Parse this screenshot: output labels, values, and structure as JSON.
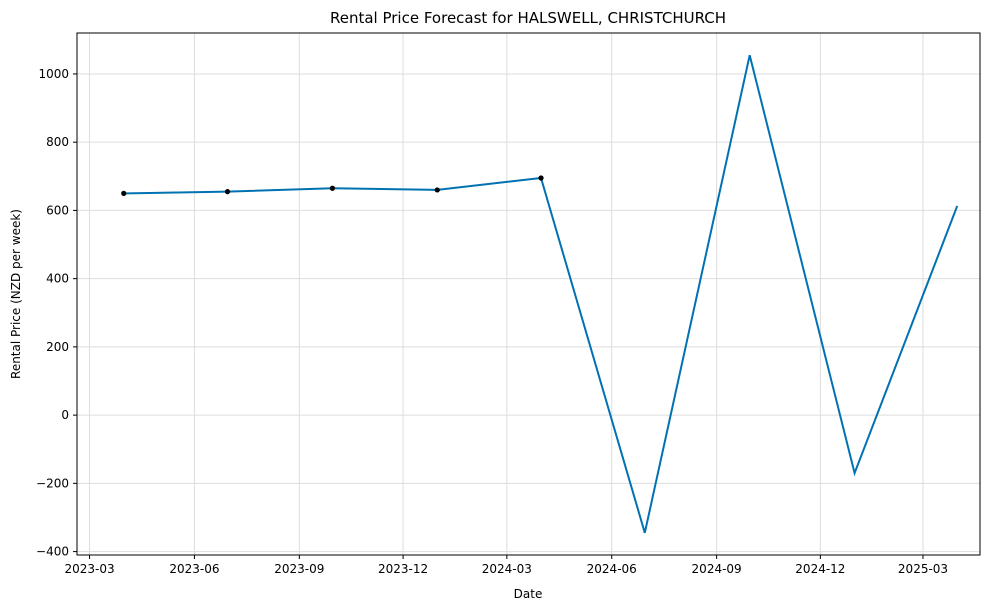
{
  "chart_data": {
    "type": "line",
    "title": "Rental Price Forecast for HALSWELL, CHRISTCHURCH",
    "xlabel": "Date",
    "ylabel": "Rental Price (NZD per week)",
    "x_ticks": [
      "2023-03",
      "2023-06",
      "2023-09",
      "2023-12",
      "2024-03",
      "2024-06",
      "2024-09",
      "2024-12",
      "2025-03"
    ],
    "y_ticks": [
      -400,
      -200,
      0,
      200,
      400,
      600,
      800,
      1000
    ],
    "ylim": [
      -410,
      1120
    ],
    "xlim": [
      "2023-02-18",
      "2025-04-20"
    ],
    "grid": true,
    "colors": {
      "forecast_line": "#0072B2",
      "observed_points": "#000000"
    },
    "series": [
      {
        "type": "line",
        "x": [
          "2023-03-31",
          "2023-06-30",
          "2023-09-30",
          "2023-12-31",
          "2024-03-31",
          "2024-06-30",
          "2024-09-30",
          "2024-12-31",
          "2025-03-31"
        ],
        "y": [
          650,
          655,
          665,
          660,
          695,
          -345,
          1055,
          -170,
          613
        ]
      },
      {
        "type": "scatter",
        "x": [
          "2023-03-31",
          "2023-06-30",
          "2023-09-30",
          "2023-12-31",
          "2024-03-31"
        ],
        "y": [
          650,
          655,
          665,
          660,
          695
        ]
      }
    ]
  }
}
